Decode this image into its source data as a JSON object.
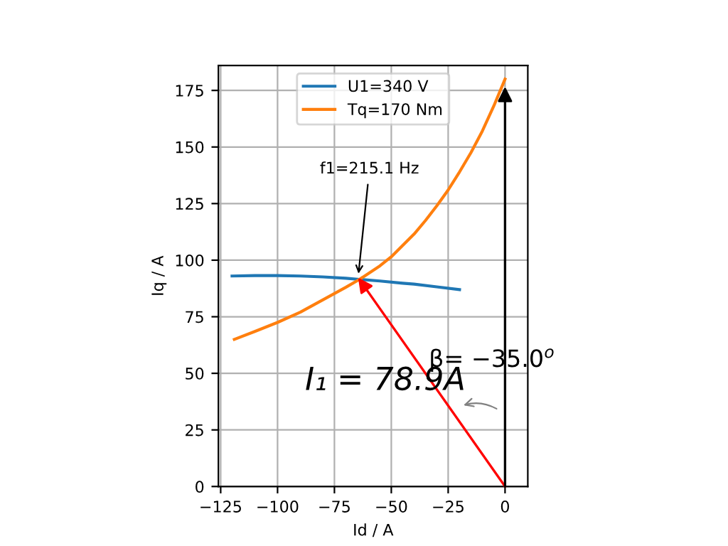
{
  "chart_data": {
    "type": "line",
    "xlabel": "Id / A",
    "ylabel": "Iq / A",
    "xlim": [
      -126,
      10
    ],
    "ylim": [
      0,
      186
    ],
    "xticks": [
      {
        "value": -125,
        "label": "−125"
      },
      {
        "value": -100,
        "label": "−100"
      },
      {
        "value": -75,
        "label": "−75"
      },
      {
        "value": -50,
        "label": "−50"
      },
      {
        "value": -25,
        "label": "−25"
      },
      0
    ],
    "yticks": [
      0,
      25,
      50,
      75,
      100,
      125,
      150,
      175
    ],
    "grid": true,
    "legend": "top",
    "series": [
      {
        "name": "U1=340 V",
        "color": "#1f77b4",
        "x": [
          -120,
          -110,
          -100,
          -90,
          -80,
          -70,
          -64,
          -55,
          -45,
          -40,
          -30,
          -20
        ],
        "values": [
          93,
          93.2,
          93.2,
          93,
          92.6,
          92,
          91.5,
          90.8,
          89.8,
          89.4,
          88.2,
          87
        ]
      },
      {
        "name": "Tq=170 Nm",
        "color": "#ff7f0e",
        "x": [
          -119,
          -110,
          -100,
          -90,
          -80,
          -70,
          -64,
          -55,
          -50,
          -45,
          -40,
          -35,
          -30,
          -25,
          -20,
          -15,
          -10,
          -5,
          0
        ],
        "values": [
          65,
          68.5,
          72.5,
          77,
          82.5,
          88,
          91.5,
          97.5,
          101.5,
          106.5,
          111.5,
          117.5,
          124,
          131,
          139,
          147.5,
          157,
          168,
          180
        ]
      }
    ],
    "annotations": [
      {
        "text": "f1=215.1 Hz",
        "x": -64.6,
        "y": 92.3
      },
      "I₁ = 78.9A",
      "β= −35.0$^{o}$"
    ]
  }
}
